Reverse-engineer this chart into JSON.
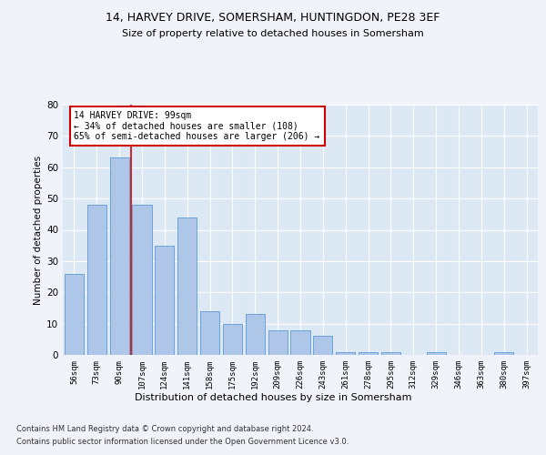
{
  "title1": "14, HARVEY DRIVE, SOMERSHAM, HUNTINGDON, PE28 3EF",
  "title2": "Size of property relative to detached houses in Somersham",
  "xlabel": "Distribution of detached houses by size in Somersham",
  "ylabel": "Number of detached properties",
  "categories": [
    "56sqm",
    "73sqm",
    "90sqm",
    "107sqm",
    "124sqm",
    "141sqm",
    "158sqm",
    "175sqm",
    "192sqm",
    "209sqm",
    "226sqm",
    "243sqm",
    "261sqm",
    "278sqm",
    "295sqm",
    "312sqm",
    "329sqm",
    "346sqm",
    "363sqm",
    "380sqm",
    "397sqm"
  ],
  "values": [
    26,
    48,
    63,
    48,
    35,
    44,
    14,
    10,
    13,
    8,
    8,
    6,
    1,
    1,
    1,
    0,
    1,
    0,
    0,
    1,
    0
  ],
  "bar_color": "#aec6e8",
  "bar_edge_color": "#5b9bd5",
  "background_color": "#dde8f5",
  "grid_color": "#ffffff",
  "vline_color": "#cc0000",
  "annotation_text": "14 HARVEY DRIVE: 99sqm\n← 34% of detached houses are smaller (108)\n65% of semi-detached houses are larger (206) →",
  "annotation_box_color": "#ffffff",
  "annotation_box_edge": "#cc0000",
  "ylim": [
    0,
    80
  ],
  "yticks": [
    0,
    10,
    20,
    30,
    40,
    50,
    60,
    70,
    80
  ],
  "footer1": "Contains HM Land Registry data © Crown copyright and database right 2024.",
  "footer2": "Contains public sector information licensed under the Open Government Licence v3.0."
}
